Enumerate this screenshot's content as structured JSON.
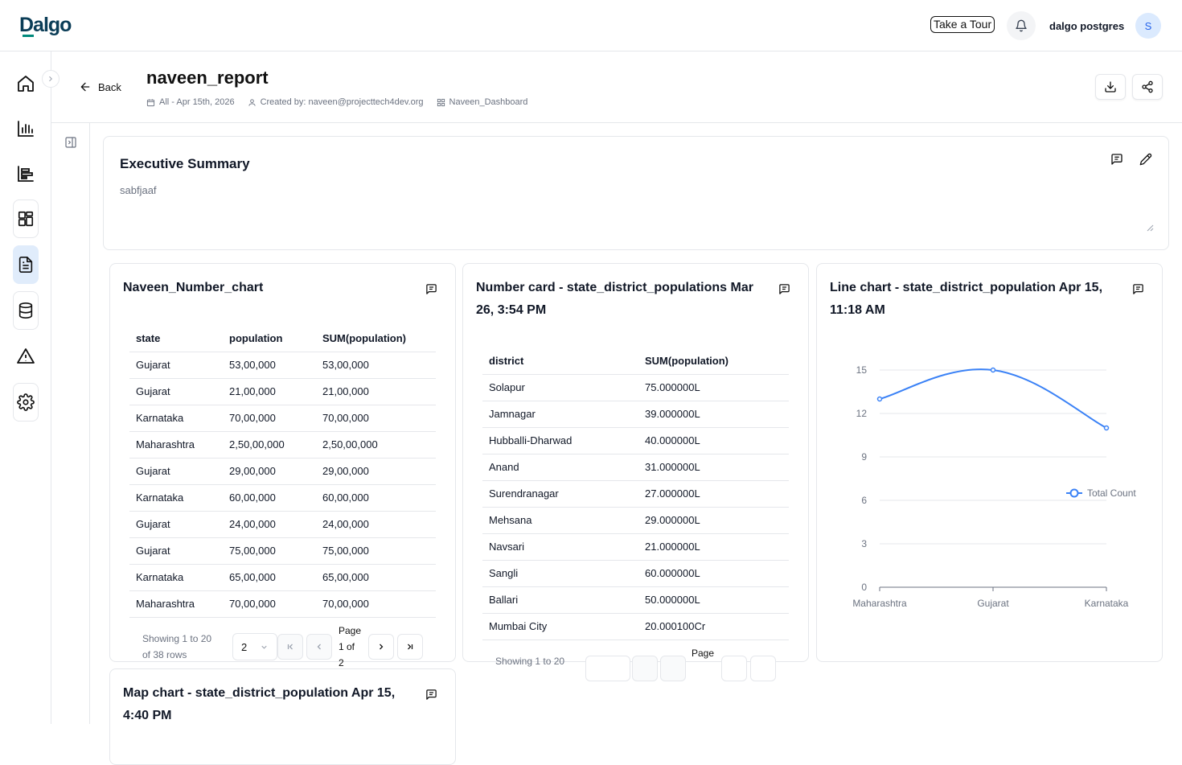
{
  "topbar": {
    "logo": "Dalgo",
    "tour_label": "Take a Tour",
    "username": "dalgo postgres",
    "avatar_initial": "S"
  },
  "sidenav": {
    "items": [
      "home-icon",
      "chart-icon",
      "horizontal-bars-icon",
      "dashboard-grid-icon",
      "report-document-icon",
      "database-icon",
      "warning-icon",
      "settings-gear-icon"
    ],
    "active": "report-document-icon"
  },
  "header": {
    "back_label": "Back",
    "title": "naveen_report",
    "date_range": "All - Apr 15th, 2026",
    "created_by": "Created by: naveen@projecttech4dev.org",
    "dashboard": "Naveen_Dashboard"
  },
  "executive_summary": {
    "title": "Executive Summary",
    "text": "sabfjaaf"
  },
  "number_chart": {
    "title": "Naveen_Number_chart",
    "columns": [
      "state",
      "population",
      "SUM(population)"
    ],
    "rows": [
      [
        "Gujarat",
        "53,00,000",
        "53,00,000"
      ],
      [
        "Gujarat",
        "21,00,000",
        "21,00,000"
      ],
      [
        "Karnataka",
        "70,00,000",
        "70,00,000"
      ],
      [
        "Maharashtra",
        "2,50,00,000",
        "2,50,00,000"
      ],
      [
        "Gujarat",
        "29,00,000",
        "29,00,000"
      ],
      [
        "Karnataka",
        "60,00,000",
        "60,00,000"
      ],
      [
        "Gujarat",
        "24,00,000",
        "24,00,000"
      ],
      [
        "Gujarat",
        "75,00,000",
        "75,00,000"
      ],
      [
        "Karnataka",
        "65,00,000",
        "65,00,000"
      ],
      [
        "Maharashtra",
        "70,00,000",
        "70,00,000"
      ]
    ],
    "showing_line1": "Showing 1 to 20",
    "showing_line2": "of 38 rows",
    "page_size": "2",
    "page_label": "Page",
    "page_of": "1 of",
    "page_total": "2"
  },
  "number_card": {
    "title_line1": "Number card - state_district_populations Mar",
    "title_line2": "26, 3:54 PM",
    "columns": [
      "district",
      "SUM(population)"
    ],
    "rows": [
      [
        "Solapur",
        "75.000000L"
      ],
      [
        "Jamnagar",
        "39.000000L"
      ],
      [
        "Hubballi-Dharwad",
        "40.000000L"
      ],
      [
        "Anand",
        "31.000000L"
      ],
      [
        "Surendranagar",
        "27.000000L"
      ],
      [
        "Mehsana",
        "29.000000L"
      ],
      [
        "Navsari",
        "21.000000L"
      ],
      [
        "Sangli",
        "60.000000L"
      ],
      [
        "Ballari",
        "50.000000L"
      ],
      [
        "Mumbai City",
        "20.000100Cr"
      ]
    ],
    "showing": "Showing 1 to 20",
    "page_label": "Page"
  },
  "line_chart_card": {
    "title_line1": "Line chart - state_district_population Apr 15,",
    "title_line2": "11:18 AM"
  },
  "chart_data": {
    "type": "line",
    "categories": [
      "Maharashtra",
      "Gujarat",
      "Karnataka"
    ],
    "series": [
      {
        "name": "Total Count",
        "values": [
          13,
          15,
          11
        ]
      }
    ],
    "ylim": [
      0,
      15
    ],
    "yticks": [
      0,
      3,
      6,
      9,
      12,
      15
    ],
    "grid": true,
    "legend": "right",
    "color": "#3b82f6"
  },
  "map_chart": {
    "title_line1": "Map chart - state_district_population Apr 15,",
    "title_line2": "4:40 PM"
  }
}
